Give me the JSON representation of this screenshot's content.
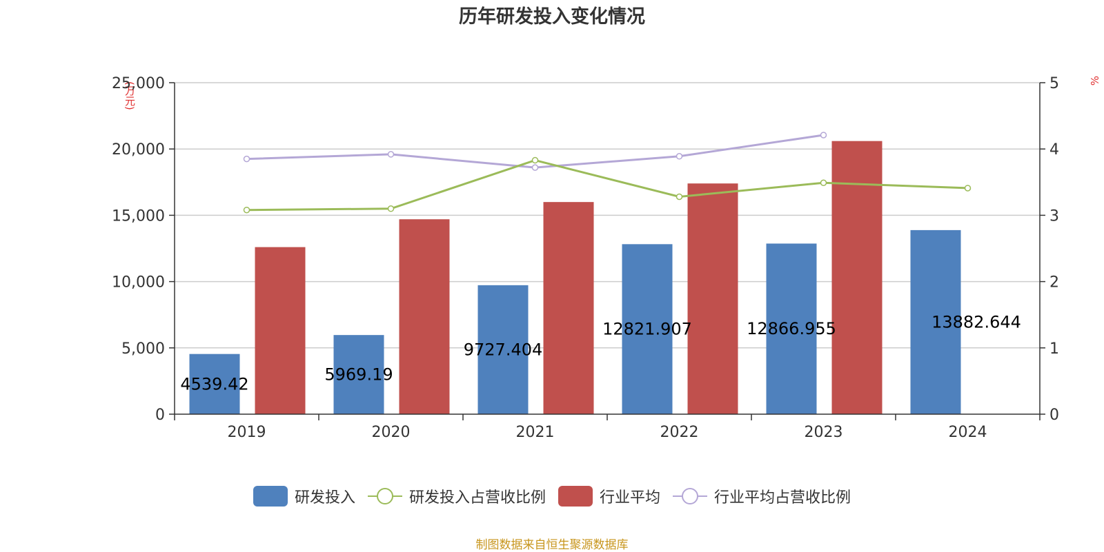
{
  "title": "历年研发投入变化情况",
  "y_left_unit": "(万元)",
  "y_right_unit": "%",
  "source": "制图数据来自恒生聚源数据库",
  "colors": {
    "rd_bar": "#4f81bd",
    "industry_bar": "#c0504d",
    "rd_ratio_line": "#9bbb59",
    "industry_ratio_line": "#b4a7d6"
  },
  "legend": [
    {
      "label": "研发投入",
      "kind": "bar",
      "color": "#4f81bd"
    },
    {
      "label": "研发投入占营收比例",
      "kind": "line",
      "color": "#9bbb59"
    },
    {
      "label": "行业平均",
      "kind": "bar",
      "color": "#c0504d"
    },
    {
      "label": "行业平均占营收比例",
      "kind": "line",
      "color": "#b4a7d6"
    }
  ],
  "chart_data": {
    "type": "bar",
    "title": "历年研发投入变化情况",
    "categories": [
      "2019",
      "2020",
      "2021",
      "2022",
      "2023",
      "2024"
    ],
    "y_left": {
      "label": "(万元)",
      "lim": [
        0,
        25000
      ],
      "ticks": [
        0,
        5000,
        10000,
        15000,
        20000,
        25000
      ],
      "tick_labels": [
        "0",
        "5,000",
        "10,000",
        "15,000",
        "20,000",
        "25,000"
      ]
    },
    "y_right": {
      "label": "%",
      "lim": [
        0,
        5
      ],
      "ticks": [
        0,
        1,
        2,
        3,
        4,
        5
      ],
      "tick_labels": [
        "0",
        "1",
        "2",
        "3",
        "4",
        "5"
      ]
    },
    "grid": true,
    "legend_position": "bottom",
    "series": [
      {
        "name": "研发投入",
        "type": "bar",
        "axis": "left",
        "values": [
          4539.42,
          5969.19,
          9727.404,
          12821.907,
          12866.955,
          13882.644
        ],
        "labels": [
          "4539.42",
          "5969.19",
          "9727.404",
          "12821.907",
          "12866.955",
          "13882.644"
        ]
      },
      {
        "name": "行业平均",
        "type": "bar",
        "axis": "left",
        "values": [
          12600,
          14700,
          16000,
          17400,
          20600,
          null
        ]
      },
      {
        "name": "研发投入占营收比例",
        "type": "line",
        "axis": "right",
        "values": [
          3.08,
          3.1,
          3.83,
          3.28,
          3.49,
          3.41
        ]
      },
      {
        "name": "行业平均占营收比例",
        "type": "line",
        "axis": "right",
        "values": [
          3.85,
          3.92,
          3.72,
          3.89,
          4.21,
          null
        ]
      }
    ]
  }
}
